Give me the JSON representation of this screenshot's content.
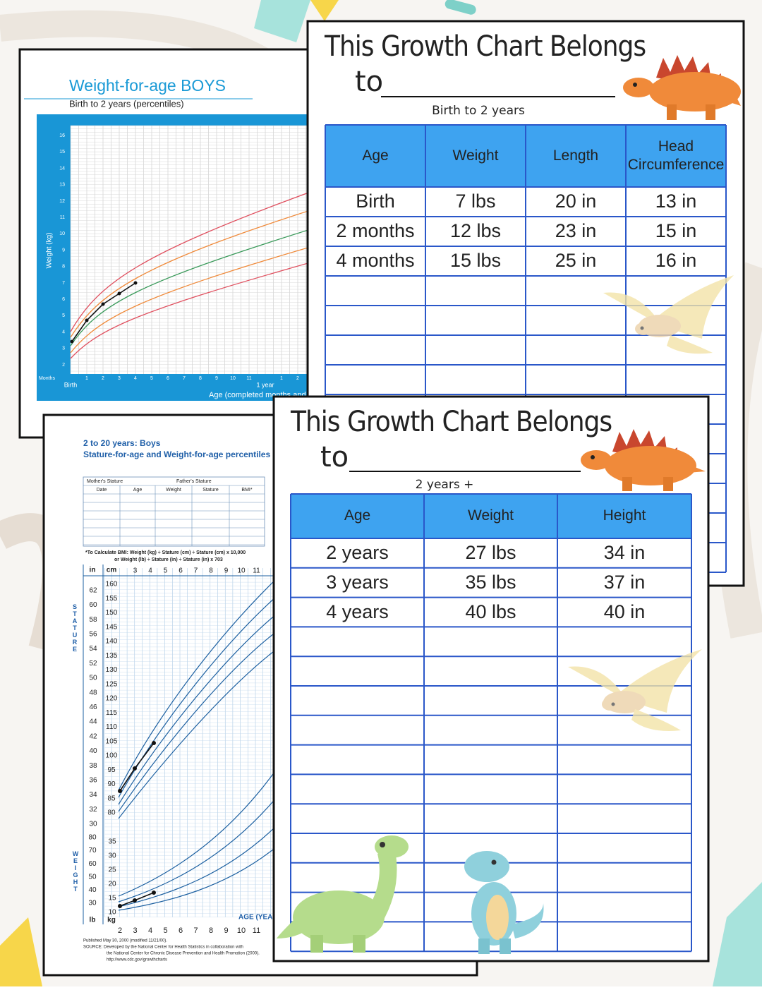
{
  "weight_chart": {
    "title": "Weight-for-age BOYS",
    "subtitle": "Birth to 2 years (percentiles)",
    "y_label": "Weight (kg)",
    "y_ticks": [
      16,
      15,
      14,
      13,
      12,
      11,
      10,
      9,
      8,
      7,
      6,
      5,
      4,
      3,
      2
    ],
    "x_unit": "Months",
    "x_start": "Birth",
    "x_ticks": [
      1,
      2,
      3,
      4,
      5,
      6,
      7,
      8,
      9,
      10,
      11
    ],
    "year_label": "1 year",
    "x_ticks_year2": [
      1,
      2
    ],
    "x_label": "Age (completed months and years)"
  },
  "infant_table": {
    "title": "This Growth Chart Belongs",
    "to": "to",
    "subtitle": "Birth to 2 years",
    "headers": [
      "Age",
      "Weight",
      "Length",
      "Head Circumference"
    ],
    "rows": [
      [
        "Birth",
        "7 lbs",
        "20 in",
        "13 in"
      ],
      [
        "2 months",
        "12 lbs",
        "23 in",
        "15 in"
      ],
      [
        "4 months",
        "15 lbs",
        "25 in",
        "16 in"
      ]
    ]
  },
  "cdc_chart": {
    "title": "2 to 20 years: Boys",
    "subtitle": "Stature-for-age and Weight-for-age percentiles",
    "mother": "Mother's Stature",
    "father": "Father's Stature",
    "columns": [
      "Date",
      "Age",
      "Weight",
      "Stature",
      "BMI*"
    ],
    "bmi_note": [
      "*To Calculate BMI: Weight (kg) ÷ Stature (cm) ÷ Stature (cm) x 10,000",
      "or Weight (lb) ÷ Stature (in) ÷ Stature (in) x 703"
    ],
    "in_unit": "in",
    "cm_unit": "cm",
    "stature_label": "STATURE",
    "weight_label": "WEIGHT",
    "in_ticks": [
      62,
      60,
      58,
      56,
      54,
      52,
      50,
      48,
      46,
      44,
      42,
      40,
      38,
      36,
      34,
      32,
      30
    ],
    "cm_ticks": [
      160,
      155,
      150,
      145,
      140,
      135,
      130,
      125,
      120,
      115,
      110,
      105,
      100,
      95,
      90,
      85,
      80
    ],
    "lb_ticks": [
      80,
      70,
      60,
      50,
      40,
      30
    ],
    "kg_ticks": [
      35,
      30,
      25,
      20,
      15,
      10
    ],
    "top_age_ticks": [
      3,
      4,
      5,
      6,
      7,
      8,
      9,
      10,
      11
    ],
    "age_ticks": [
      2,
      3,
      4,
      5,
      6,
      7,
      8,
      9,
      10,
      11
    ],
    "lb_unit": "lb",
    "kg_unit": "kg",
    "age_label": "AGE (YEARS)",
    "footer": [
      "Published May 30, 2000 (modified 11/21/00).",
      "SOURCE: Developed by the National Center for Health Statistics in collaboration with",
      "the National Center for Chronic Disease Prevention and Health Promotion (2000).",
      "http://www.cdc.gov/growthcharts"
    ]
  },
  "child_table": {
    "title": "This Growth Chart Belongs",
    "to": "to",
    "subtitle": "2 years +",
    "headers": [
      "Age",
      "Weight",
      "Height"
    ],
    "rows": [
      [
        "2 years",
        "27 lbs",
        "34 in"
      ],
      [
        "3 years",
        "35 lbs",
        "37 in"
      ],
      [
        "4 years",
        "40 lbs",
        "40 in"
      ]
    ]
  }
}
